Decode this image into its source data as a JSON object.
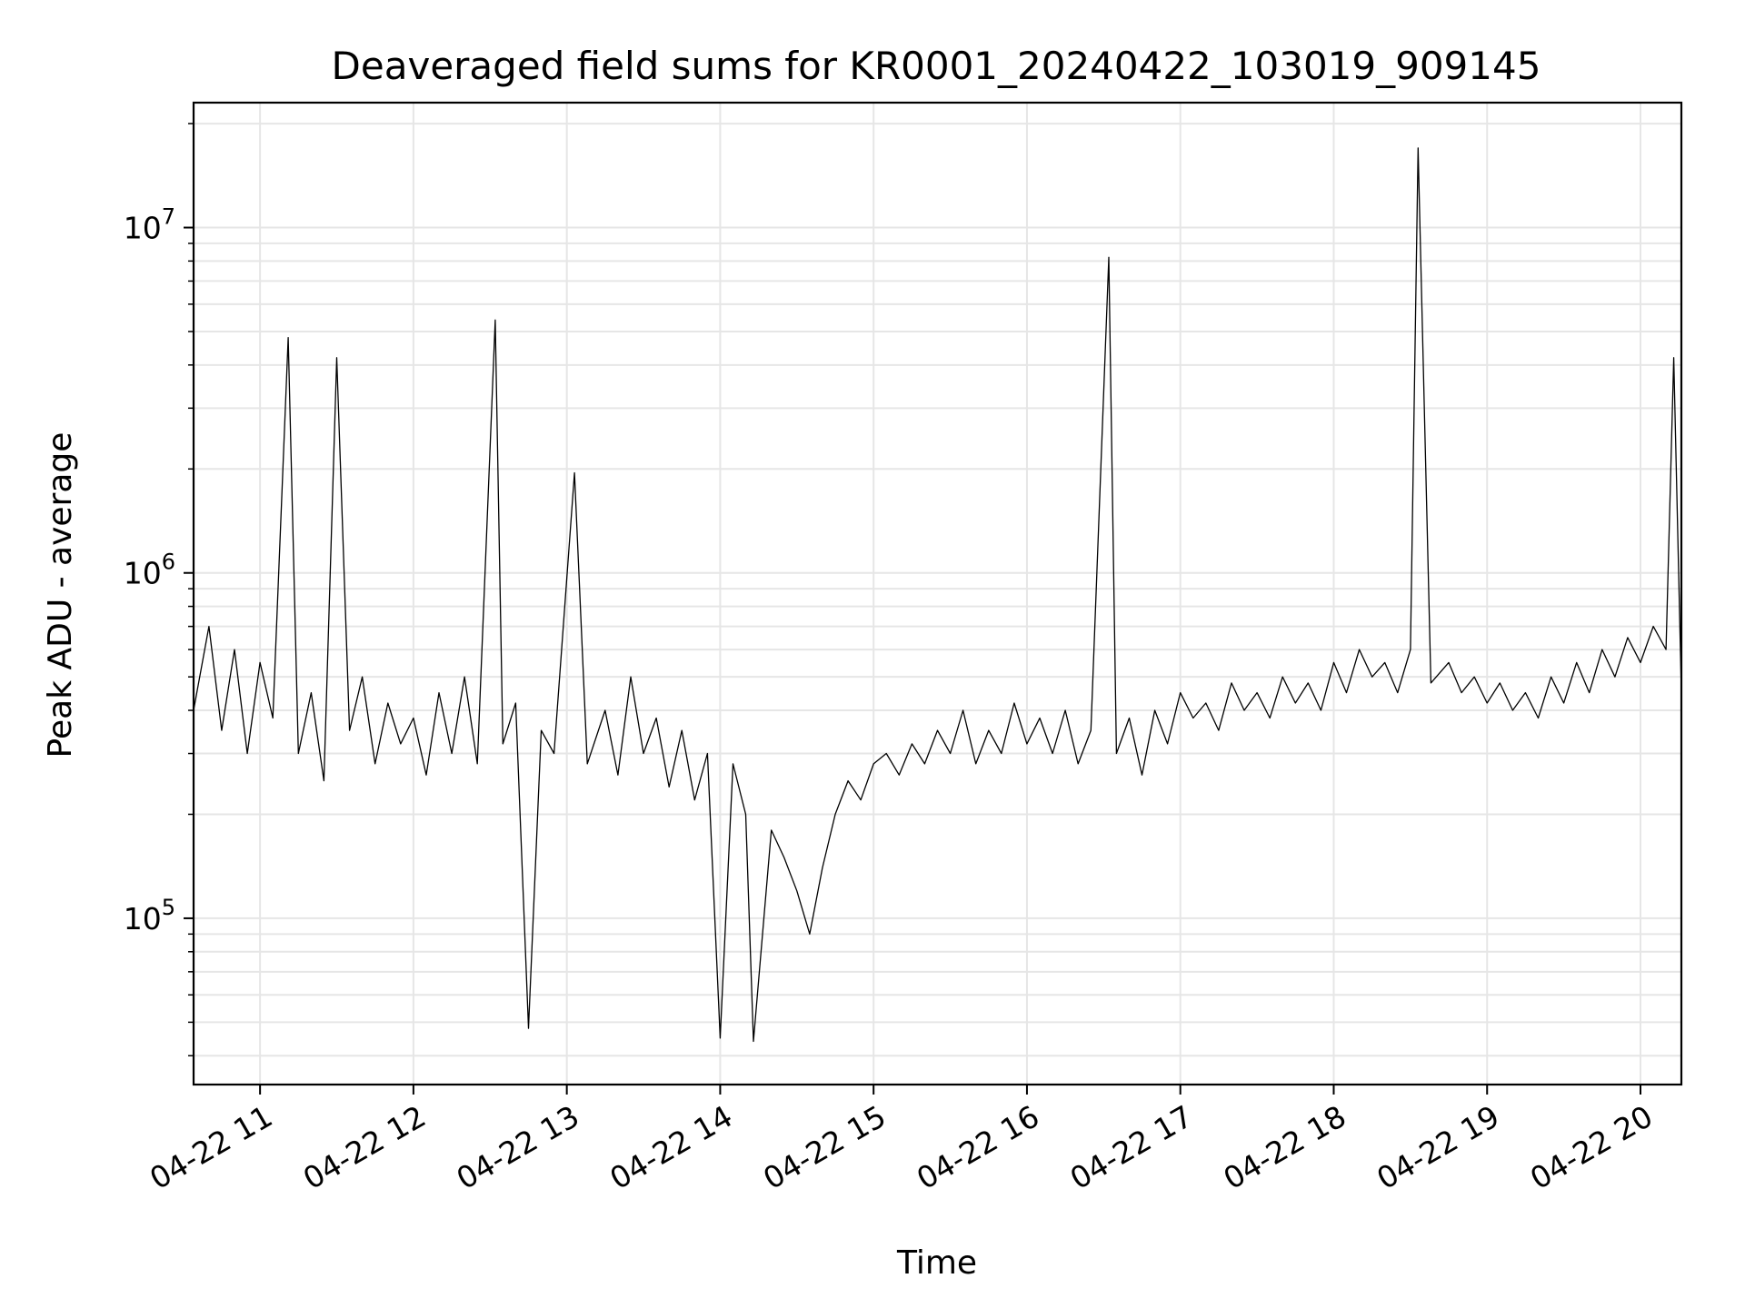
{
  "chart_data": {
    "type": "line",
    "title": "Deaveraged field sums for KR0001_20240422_103019_909145",
    "xlabel": "Time",
    "ylabel": "Peak ADU - average",
    "x_tick_labels": [
      "04-22 11",
      "04-22 12",
      "04-22 13",
      "04-22 14",
      "04-22 15",
      "04-22 16",
      "04-22 17",
      "04-22 18",
      "04-22 19",
      "04-22 20"
    ],
    "y_tick_labels": [
      {
        "base": "10",
        "exp": "5"
      },
      {
        "base": "10",
        "exp": "6"
      },
      {
        "base": "10",
        "exp": "7"
      }
    ],
    "yscale": "log",
    "xlim": [
      "2024-04-22 10:34",
      "2024-04-22 20:16"
    ],
    "ylim": [
      33000,
      23000000
    ],
    "grid": true,
    "line_color": "#000000",
    "series": [
      {
        "values_note_free": true,
        "points": [
          [
            "2024-04-22 10:34",
            400000
          ],
          [
            "2024-04-22 10:40",
            700000
          ],
          [
            "2024-04-22 10:45",
            350000
          ],
          [
            "2024-04-22 10:50",
            600000
          ],
          [
            "2024-04-22 10:55",
            300000
          ],
          [
            "2024-04-22 11:00",
            550000
          ],
          [
            "2024-04-22 11:05",
            380000
          ],
          [
            "2024-04-22 11:11",
            4800000
          ],
          [
            "2024-04-22 11:15",
            300000
          ],
          [
            "2024-04-22 11:20",
            450000
          ],
          [
            "2024-04-22 11:25",
            250000
          ],
          [
            "2024-04-22 11:30",
            4200000
          ],
          [
            "2024-04-22 11:35",
            350000
          ],
          [
            "2024-04-22 11:40",
            500000
          ],
          [
            "2024-04-22 11:45",
            280000
          ],
          [
            "2024-04-22 11:50",
            420000
          ],
          [
            "2024-04-22 11:55",
            320000
          ],
          [
            "2024-04-22 12:00",
            380000
          ],
          [
            "2024-04-22 12:05",
            260000
          ],
          [
            "2024-04-22 12:10",
            450000
          ],
          [
            "2024-04-22 12:15",
            300000
          ],
          [
            "2024-04-22 12:20",
            500000
          ],
          [
            "2024-04-22 12:25",
            280000
          ],
          [
            "2024-04-22 12:32",
            5400000
          ],
          [
            "2024-04-22 12:35",
            320000
          ],
          [
            "2024-04-22 12:40",
            420000
          ],
          [
            "2024-04-22 12:45",
            48000
          ],
          [
            "2024-04-22 12:50",
            350000
          ],
          [
            "2024-04-22 12:55",
            300000
          ],
          [
            "2024-04-22 13:03",
            1950000
          ],
          [
            "2024-04-22 13:08",
            280000
          ],
          [
            "2024-04-22 13:15",
            400000
          ],
          [
            "2024-04-22 13:20",
            260000
          ],
          [
            "2024-04-22 13:25",
            500000
          ],
          [
            "2024-04-22 13:30",
            300000
          ],
          [
            "2024-04-22 13:35",
            380000
          ],
          [
            "2024-04-22 13:40",
            240000
          ],
          [
            "2024-04-22 13:45",
            350000
          ],
          [
            "2024-04-22 13:50",
            220000
          ],
          [
            "2024-04-22 13:55",
            300000
          ],
          [
            "2024-04-22 14:00",
            45000
          ],
          [
            "2024-04-22 14:05",
            280000
          ],
          [
            "2024-04-22 14:10",
            200000
          ],
          [
            "2024-04-22 14:13",
            44000
          ],
          [
            "2024-04-22 14:20",
            180000
          ],
          [
            "2024-04-22 14:25",
            150000
          ],
          [
            "2024-04-22 14:30",
            120000
          ],
          [
            "2024-04-22 14:35",
            90000
          ],
          [
            "2024-04-22 14:40",
            140000
          ],
          [
            "2024-04-22 14:45",
            200000
          ],
          [
            "2024-04-22 14:50",
            250000
          ],
          [
            "2024-04-22 14:55",
            220000
          ],
          [
            "2024-04-22 15:00",
            280000
          ],
          [
            "2024-04-22 15:05",
            300000
          ],
          [
            "2024-04-22 15:10",
            260000
          ],
          [
            "2024-04-22 15:15",
            320000
          ],
          [
            "2024-04-22 15:20",
            280000
          ],
          [
            "2024-04-22 15:25",
            350000
          ],
          [
            "2024-04-22 15:30",
            300000
          ],
          [
            "2024-04-22 15:35",
            400000
          ],
          [
            "2024-04-22 15:40",
            280000
          ],
          [
            "2024-04-22 15:45",
            350000
          ],
          [
            "2024-04-22 15:50",
            300000
          ],
          [
            "2024-04-22 15:55",
            420000
          ],
          [
            "2024-04-22 16:00",
            320000
          ],
          [
            "2024-04-22 16:05",
            380000
          ],
          [
            "2024-04-22 16:10",
            300000
          ],
          [
            "2024-04-22 16:15",
            400000
          ],
          [
            "2024-04-22 16:20",
            280000
          ],
          [
            "2024-04-22 16:25",
            350000
          ],
          [
            "2024-04-22 16:32",
            8200000
          ],
          [
            "2024-04-22 16:35",
            300000
          ],
          [
            "2024-04-22 16:40",
            380000
          ],
          [
            "2024-04-22 16:45",
            260000
          ],
          [
            "2024-04-22 16:50",
            400000
          ],
          [
            "2024-04-22 16:55",
            320000
          ],
          [
            "2024-04-22 17:00",
            450000
          ],
          [
            "2024-04-22 17:05",
            380000
          ],
          [
            "2024-04-22 17:10",
            420000
          ],
          [
            "2024-04-22 17:15",
            350000
          ],
          [
            "2024-04-22 17:20",
            480000
          ],
          [
            "2024-04-22 17:25",
            400000
          ],
          [
            "2024-04-22 17:30",
            450000
          ],
          [
            "2024-04-22 17:35",
            380000
          ],
          [
            "2024-04-22 17:40",
            500000
          ],
          [
            "2024-04-22 17:45",
            420000
          ],
          [
            "2024-04-22 17:50",
            480000
          ],
          [
            "2024-04-22 17:55",
            400000
          ],
          [
            "2024-04-22 18:00",
            550000
          ],
          [
            "2024-04-22 18:05",
            450000
          ],
          [
            "2024-04-22 18:10",
            600000
          ],
          [
            "2024-04-22 18:15",
            500000
          ],
          [
            "2024-04-22 18:20",
            550000
          ],
          [
            "2024-04-22 18:25",
            450000
          ],
          [
            "2024-04-22 18:30",
            600000
          ],
          [
            "2024-04-22 18:33",
            17000000
          ],
          [
            "2024-04-22 18:38",
            480000
          ],
          [
            "2024-04-22 18:45",
            550000
          ],
          [
            "2024-04-22 18:50",
            450000
          ],
          [
            "2024-04-22 18:55",
            500000
          ],
          [
            "2024-04-22 19:00",
            420000
          ],
          [
            "2024-04-22 19:05",
            480000
          ],
          [
            "2024-04-22 19:10",
            400000
          ],
          [
            "2024-04-22 19:15",
            450000
          ],
          [
            "2024-04-22 19:20",
            380000
          ],
          [
            "2024-04-22 19:25",
            500000
          ],
          [
            "2024-04-22 19:30",
            420000
          ],
          [
            "2024-04-22 19:35",
            550000
          ],
          [
            "2024-04-22 19:40",
            450000
          ],
          [
            "2024-04-22 19:45",
            600000
          ],
          [
            "2024-04-22 19:50",
            500000
          ],
          [
            "2024-04-22 19:55",
            650000
          ],
          [
            "2024-04-22 20:00",
            550000
          ],
          [
            "2024-04-22 20:05",
            700000
          ],
          [
            "2024-04-22 20:10",
            600000
          ],
          [
            "2024-04-22 20:13",
            4200000
          ],
          [
            "2024-04-22 20:16",
            450000
          ]
        ]
      }
    ]
  }
}
